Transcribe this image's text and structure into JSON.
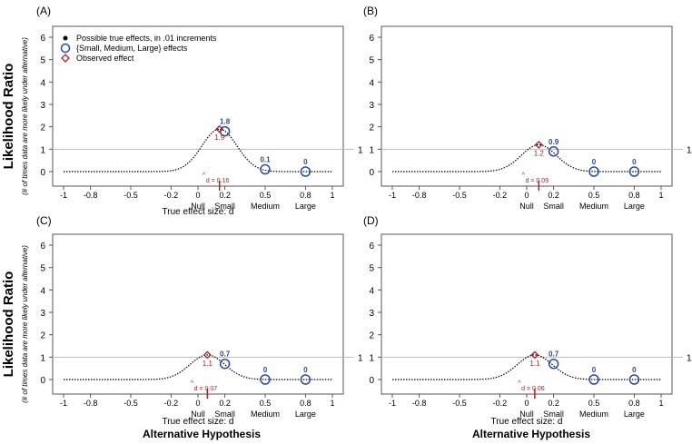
{
  "figure": {
    "ylabel_main": "Likelihood Ratio",
    "ylabel_sub": "(# of times data are more likely under alternative)",
    "xlabel": "True effect size: d",
    "bottom_label": "Alternative Hypothesis",
    "hyp_labels": [
      "Null",
      "Small",
      "Medium",
      "Large"
    ],
    "reference_label": "1",
    "legend": {
      "placement": "top-left",
      "items": [
        {
          "label": "Possible true effects, in .01 increments",
          "marker": "dot",
          "color": "#000000"
        },
        {
          "label": "{Small, Medium, Large} effects",
          "marker": "circle",
          "color": "#2b4aa0"
        },
        {
          "label": "Observed effect",
          "marker": "diamond",
          "color": "#a32626"
        }
      ]
    },
    "colors": {
      "curve": "#000000",
      "circles": "#2b4aa0",
      "observed": "#a32626",
      "reference": "#bbbbbb",
      "frame": "#555555"
    }
  },
  "chart_data": [
    {
      "type": "line",
      "panel_label": "(A)",
      "xlim": [
        -1,
        1
      ],
      "ylim": [
        0,
        6
      ],
      "x_ticks": [
        "-1",
        "-0.8",
        "-0.5",
        "-0.2",
        "0",
        "0.2",
        "0.5",
        "0.8",
        "1"
      ],
      "x_tick_values": [
        -1,
        -0.8,
        -0.5,
        -0.2,
        0,
        0.2,
        0.5,
        0.8,
        1
      ],
      "y_ticks": [
        "0",
        "1",
        "2",
        "3",
        "4",
        "5",
        "6"
      ],
      "reference_line": 1,
      "observed": {
        "d": 0.16,
        "lr": 1.9,
        "d_label": "d = 0.16",
        "lr_label": "1.9"
      },
      "hypotheses": [
        {
          "d": 0.2,
          "lr": 1.8,
          "label": "1.8"
        },
        {
          "d": 0.5,
          "lr": 0.1,
          "label": "0.1"
        },
        {
          "d": 0.8,
          "lr": 0,
          "label": "0"
        }
      ],
      "show_xlabel": true,
      "show_legend": true
    },
    {
      "type": "line",
      "panel_label": "(B)",
      "xlim": [
        -1,
        1
      ],
      "ylim": [
        0,
        6
      ],
      "x_ticks": [
        "-1",
        "-0.8",
        "-0.5",
        "-0.2",
        "0",
        "0.2",
        "0.5",
        "0.8",
        "1"
      ],
      "x_tick_values": [
        -1,
        -0.8,
        -0.5,
        -0.2,
        0,
        0.2,
        0.5,
        0.8,
        1
      ],
      "y_ticks": [
        "0",
        "1",
        "2",
        "3",
        "4",
        "5",
        "6"
      ],
      "reference_line": 1,
      "observed": {
        "d": 0.09,
        "lr": 1.2,
        "d_label": "d = 0.09",
        "lr_label": "1.2"
      },
      "hypotheses": [
        {
          "d": 0.2,
          "lr": 0.9,
          "label": "0.9"
        },
        {
          "d": 0.5,
          "lr": 0,
          "label": "0"
        },
        {
          "d": 0.8,
          "lr": 0,
          "label": "0"
        }
      ],
      "show_xlabel": false,
      "show_legend": false
    },
    {
      "type": "line",
      "panel_label": "(C)",
      "xlim": [
        -1,
        1
      ],
      "ylim": [
        0,
        6
      ],
      "x_ticks": [
        "-1",
        "-0.8",
        "-0.5",
        "-0.2",
        "0",
        "0.2",
        "0.5",
        "0.8",
        "1"
      ],
      "x_tick_values": [
        -1,
        -0.8,
        -0.5,
        -0.2,
        0,
        0.2,
        0.5,
        0.8,
        1
      ],
      "y_ticks": [
        "0",
        "1",
        "2",
        "3",
        "4",
        "5",
        "6"
      ],
      "reference_line": 1,
      "observed": {
        "d": 0.07,
        "lr": 1.1,
        "d_label": "d = 0.07",
        "lr_label": "1.1"
      },
      "hypotheses": [
        {
          "d": 0.2,
          "lr": 0.7,
          "label": "0.7"
        },
        {
          "d": 0.5,
          "lr": 0,
          "label": "0"
        },
        {
          "d": 0.8,
          "lr": 0,
          "label": "0"
        }
      ],
      "show_xlabel": true,
      "show_legend": false
    },
    {
      "type": "line",
      "panel_label": "(D)",
      "xlim": [
        -1,
        1
      ],
      "ylim": [
        0,
        6
      ],
      "x_ticks": [
        "-1",
        "-0.8",
        "-0.5",
        "-0.2",
        "0",
        "0.2",
        "0.5",
        "0.8",
        "1"
      ],
      "x_tick_values": [
        -1,
        -0.8,
        -0.5,
        -0.2,
        0,
        0.2,
        0.5,
        0.8,
        1
      ],
      "y_ticks": [
        "0",
        "1",
        "2",
        "3",
        "4",
        "5",
        "6"
      ],
      "reference_line": 1,
      "observed": {
        "d": 0.06,
        "lr": 1.1,
        "d_label": "d = 0.06",
        "lr_label": "1.1"
      },
      "hypotheses": [
        {
          "d": 0.2,
          "lr": 0.7,
          "label": "0.7"
        },
        {
          "d": 0.5,
          "lr": 0,
          "label": "0"
        },
        {
          "d": 0.8,
          "lr": 0,
          "label": "0"
        }
      ],
      "show_xlabel": true,
      "show_legend": false
    }
  ]
}
